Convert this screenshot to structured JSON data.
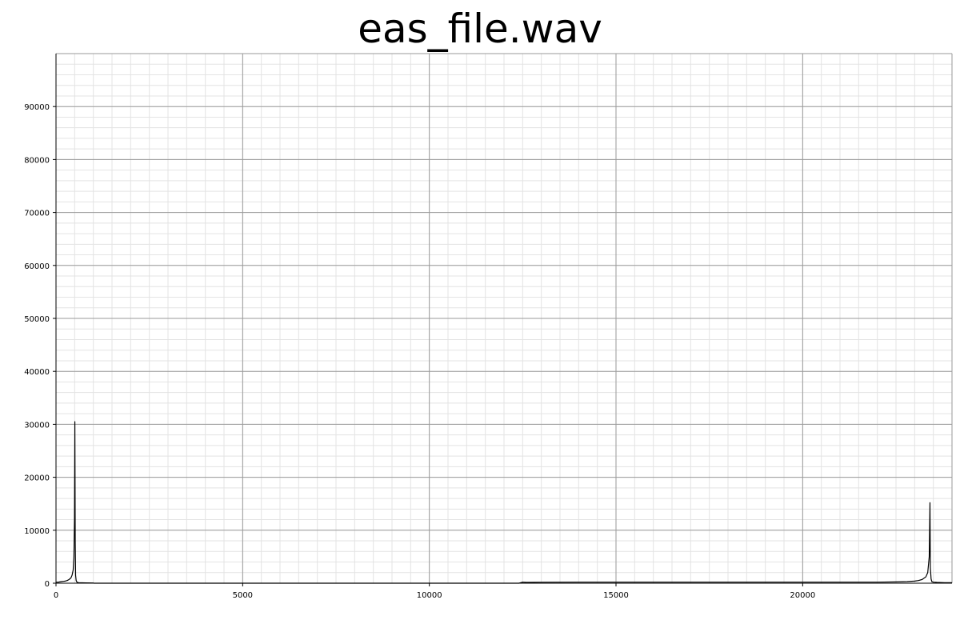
{
  "chart_data": {
    "type": "line",
    "title": "eas_file.wav",
    "xlabel": "",
    "ylabel": "",
    "xlim": [
      0,
      24000
    ],
    "ylim": [
      0,
      100000
    ],
    "x_ticks": [
      0,
      5000,
      10000,
      15000,
      20000
    ],
    "x_tick_labels": [
      "0",
      "5000",
      "10000",
      "15000",
      "20000"
    ],
    "y_ticks": [
      0,
      10000,
      20000,
      30000,
      40000,
      50000,
      60000,
      70000,
      80000,
      90000
    ],
    "y_tick_labels": [
      "0",
      "10000",
      "20000",
      "30000",
      "40000",
      "50000",
      "60000",
      "70000",
      "80000",
      "90000"
    ],
    "grid": true,
    "minor_grid": true,
    "line_color": "#000000",
    "series": [
      {
        "x": [
          0,
          50,
          100,
          150,
          200,
          250,
          300,
          350,
          400,
          430,
          460,
          480,
          495,
          505,
          515,
          525,
          540,
          560,
          600,
          700,
          800,
          1000,
          1010,
          2000,
          3000,
          4000,
          5000,
          6000,
          7000,
          8000,
          9000,
          10000,
          11000,
          12000,
          12400,
          12500,
          12600,
          13000,
          14000,
          15000,
          16000,
          17000,
          18000,
          19000,
          20000,
          21000,
          22000,
          22500,
          22800,
          23000,
          23100,
          23200,
          23300,
          23350,
          23390,
          23410,
          23420,
          23440,
          23460,
          23500,
          23600,
          23800,
          24000
        ],
        "y": [
          200,
          180,
          250,
          300,
          350,
          400,
          500,
          700,
          1000,
          1500,
          2500,
          5000,
          12000,
          30500,
          8000,
          1500,
          500,
          200,
          100,
          80,
          60,
          40,
          0,
          0,
          0,
          0,
          0,
          0,
          0,
          0,
          0,
          0,
          0,
          0,
          0,
          200,
          150,
          180,
          200,
          200,
          200,
          200,
          200,
          200,
          200,
          200,
          200,
          250,
          300,
          400,
          500,
          700,
          1200,
          2000,
          5000,
          15200,
          3000,
          800,
          300,
          200,
          150,
          100,
          100
        ]
      }
    ]
  }
}
